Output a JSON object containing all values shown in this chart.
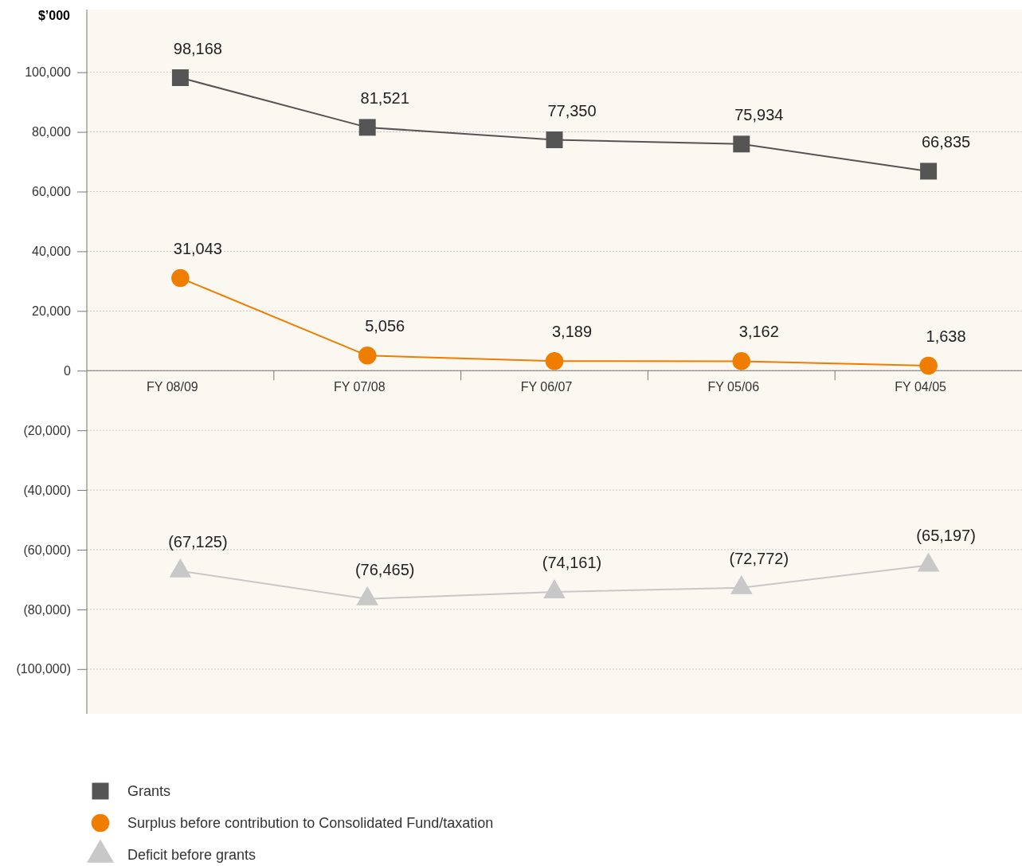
{
  "chart_data": {
    "type": "line",
    "ylabel": "$’000",
    "categories": [
      "FY 08/09",
      "FY 07/08",
      "FY 06/07",
      "FY 05/06",
      "FY 04/05"
    ],
    "series": [
      {
        "name": "Grants",
        "color": "#555555",
        "marker": "square",
        "values": [
          98168,
          81521,
          77350,
          75934,
          66835
        ],
        "value_labels": [
          "98,168",
          "81,521",
          "77,350",
          "75,934",
          "66,835"
        ]
      },
      {
        "name": "Surplus before contribution to Consolidated Fund/taxation",
        "color": "#ef7d00",
        "marker": "circle",
        "values": [
          31043,
          5056,
          3189,
          3162,
          1638
        ],
        "value_labels": [
          "31,043",
          "5,056",
          "3,189",
          "3,162",
          "1,638"
        ]
      },
      {
        "name": "Deficit before grants",
        "color": "#c8c8c8",
        "marker": "triangle",
        "values": [
          -67125,
          -76465,
          -74161,
          -72772,
          -65197
        ],
        "value_labels": [
          "(67,125)",
          "(76,465)",
          "(74,161)",
          "(72,772)",
          "(65,197)"
        ]
      }
    ],
    "ylim": [
      -115000,
      121000
    ],
    "yticks": [
      {
        "value": -100000,
        "label": "(100,000)"
      },
      {
        "value": -80000,
        "label": "(80,000)"
      },
      {
        "value": -60000,
        "label": "(60,000)"
      },
      {
        "value": -40000,
        "label": "(40,000)"
      },
      {
        "value": -20000,
        "label": "(20,000)"
      },
      {
        "value": 0,
        "label": "0"
      },
      {
        "value": 20000,
        "label": "20,000"
      },
      {
        "value": 40000,
        "label": "40,000"
      },
      {
        "value": 60000,
        "label": "60,000"
      },
      {
        "value": 80000,
        "label": "80,000"
      },
      {
        "value": 100000,
        "label": "100,000"
      }
    ],
    "grid": "y",
    "legend": "bottom"
  }
}
